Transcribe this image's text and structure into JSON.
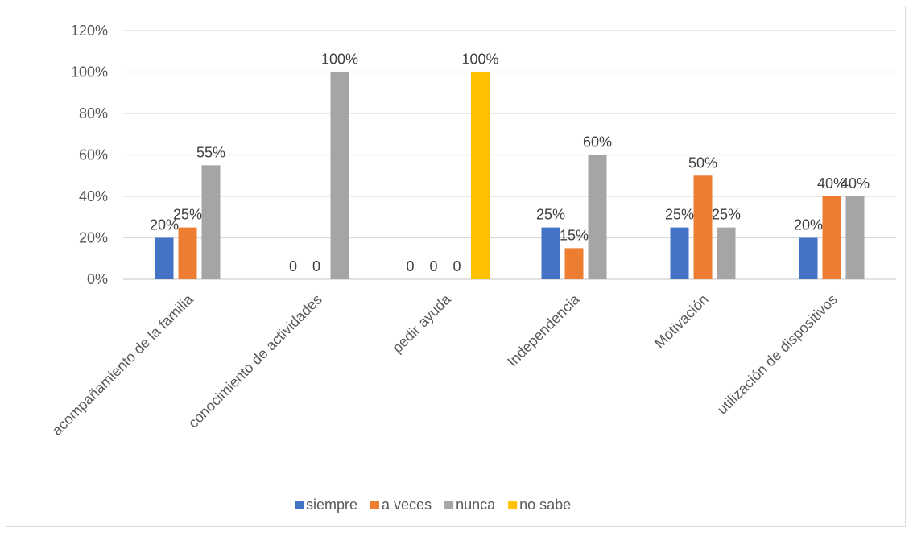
{
  "chart_data": {
    "type": "bar",
    "categories": [
      "acompañamiento de la familia",
      "conocimiento de actividades",
      "pedir ayuda",
      "Independencia",
      "Motivación",
      "utilización de dispositivos"
    ],
    "series": [
      {
        "name": "siempre",
        "color": "#4472C4",
        "values": [
          0.2,
          0,
          0,
          0.25,
          0.25,
          0.2
        ],
        "labels": [
          "20%",
          "0",
          "0",
          "25%",
          "25%",
          "20%"
        ]
      },
      {
        "name": "a veces",
        "color": "#ED7D31",
        "values": [
          0.25,
          0,
          0,
          0.15,
          0.5,
          0.4
        ],
        "labels": [
          "25%",
          "0",
          "0",
          "15%",
          "50%",
          "40%"
        ]
      },
      {
        "name": "nunca",
        "color": "#A5A5A5",
        "values": [
          0.55,
          1.0,
          0,
          0.6,
          0.25,
          0.4
        ],
        "labels": [
          "55%",
          "100%",
          "0",
          "60%",
          "25%",
          "40%"
        ]
      },
      {
        "name": "no sabe",
        "color": "#FFC000",
        "values": [
          0,
          0,
          1.0,
          0,
          0,
          0
        ],
        "labels": [
          null,
          null,
          "100%",
          null,
          null,
          null
        ]
      }
    ],
    "ylim": [
      0,
      1.2
    ],
    "yticks": [
      "0%",
      "20%",
      "40%",
      "60%",
      "80%",
      "100%",
      "120%"
    ],
    "grid": true,
    "legend": "bottom",
    "title": "",
    "xlabel": "",
    "ylabel": ""
  }
}
